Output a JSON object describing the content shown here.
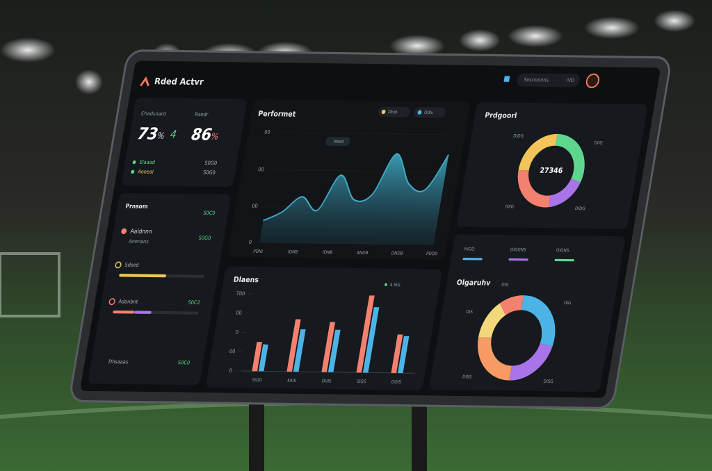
{
  "header": {
    "title": "Rded Actvr",
    "search": "Sesnoonns",
    "search_tag": "IVO"
  },
  "stats": {
    "items": [
      {
        "label": "Chadsnard",
        "value": "73",
        "unit": "%",
        "extra": "4"
      },
      {
        "label": "Rsedr",
        "value": "86",
        "unit": "%"
      }
    ],
    "rows": [
      {
        "label": "Elaaad",
        "value": "S0G0"
      },
      {
        "label": "Aooeal",
        "value": "S0G0"
      }
    ]
  },
  "list_panel": {
    "title": "Prnsom",
    "title_value": "S0C0",
    "entry": {
      "name": "Aaldnnn",
      "sub": "Anenans",
      "value": "S0G0"
    },
    "progress": [
      {
        "label": "Sdsed",
        "parts": [
          55
        ],
        "colors": [
          "#f2c45a"
        ]
      },
      {
        "label": "Adanbnt",
        "value": "S0C2",
        "parts": [
          25,
          20
        ],
        "colors": [
          "#f4806f",
          "#a874e8"
        ]
      }
    ],
    "footer": {
      "label": "Dhsaaas",
      "value": "S0C0"
    }
  },
  "area_chart": {
    "type": "area",
    "title": "Performet",
    "badge": "Nesd",
    "legend": [
      {
        "name": "Dhol",
        "color": "#f2c45a"
      },
      {
        "name": "Odlv",
        "color": "#4cb3e6"
      }
    ],
    "x": [
      0,
      1,
      2,
      3,
      4,
      5,
      6,
      7,
      8,
      9,
      10
    ],
    "values": [
      20,
      28,
      42,
      30,
      62,
      40,
      45,
      82,
      55,
      50,
      82
    ],
    "color": "#3fa9c4",
    "xlim": [
      0,
      10
    ],
    "xticks": [
      {
        "value": 0,
        "label": "PDNI"
      },
      {
        "value": 2,
        "label": "IDNB"
      },
      {
        "value": 4,
        "label": "IDNB"
      },
      {
        "value": 6,
        "label": "ANDB"
      },
      {
        "value": 8,
        "label": "DNDB"
      },
      {
        "value": 10,
        "label": "PDDD"
      }
    ],
    "ylim": [
      0,
      100
    ],
    "yticks": [
      0,
      {
        "value": 33,
        "label": "00"
      },
      {
        "value": 66,
        "label": "00"
      },
      {
        "value": 100,
        "label": "00"
      }
    ]
  },
  "bar_chart": {
    "type": "bar",
    "title": "Dlaens",
    "legend_label": "4 SIG",
    "categories": [
      "SIGD",
      "KAIS",
      "DUIS",
      "SIGS",
      "OOIS"
    ],
    "series": [
      {
        "color": "#f4806f",
        "values": [
          38,
          68,
          65,
          100,
          50
        ]
      },
      {
        "color": "#4cb3e6",
        "values": [
          35,
          55,
          55,
          85,
          48
        ]
      }
    ],
    "ylim": [
      0,
      100
    ],
    "yticks": [
      0,
      {
        "value": 25,
        "label": "00"
      },
      {
        "value": 50,
        "label": "0"
      },
      {
        "value": 75,
        "label": "00"
      },
      {
        "value": 100,
        "label": "T00"
      }
    ]
  },
  "donut_top": {
    "type": "pie",
    "title": "Prdgoorl",
    "center": "27346",
    "values": [
      30,
      18,
      27,
      25
    ],
    "colors": [
      "#5fd68e",
      "#a874e8",
      "#f4806f",
      "#f2c45a"
    ],
    "labels": [
      "DIIG",
      "DIDG",
      "IOIG",
      "DIDG"
    ]
  },
  "donut_bottom": {
    "type": "pie",
    "title": "Olgaruhv",
    "values": [
      28,
      22,
      25,
      15,
      10
    ],
    "colors": [
      "#4cb3e6",
      "#a874e8",
      "#f79a63",
      "#f2d87a",
      "#f4806f"
    ],
    "labels": [
      "DIG",
      "DISG",
      "DISS",
      "DIS",
      "DIG"
    ],
    "legend": [
      {
        "name": "HIGO",
        "color": "#4cb3e6"
      },
      {
        "name": "OIGGNS",
        "color": "#a874e8"
      },
      {
        "name": "OIGNS",
        "color": "#5fd68e"
      }
    ]
  }
}
